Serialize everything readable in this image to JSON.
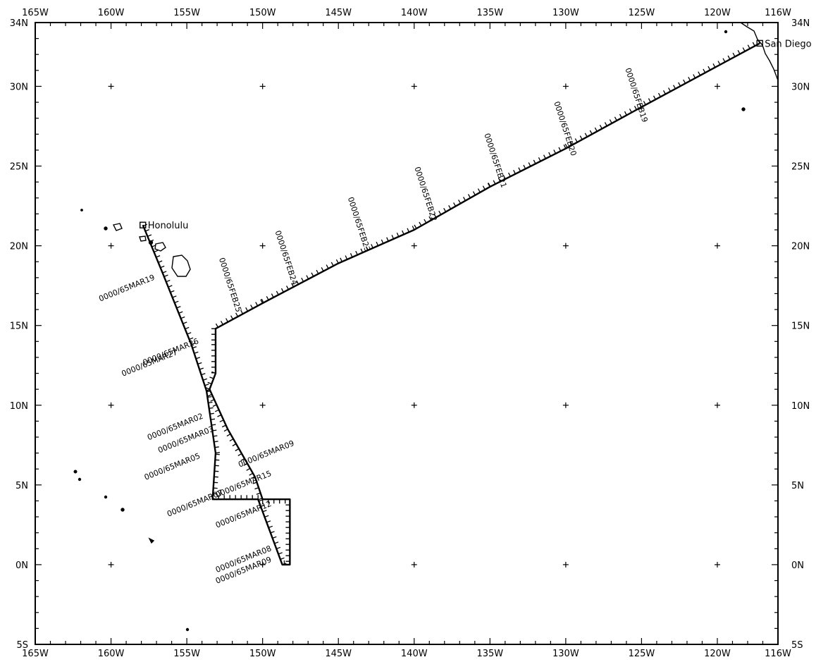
{
  "map": {
    "lon_range": [
      -165,
      -116
    ],
    "lat_range": [
      -5,
      34
    ],
    "lon_ticks": [
      {
        "value": -165,
        "label": "165W"
      },
      {
        "value": -160,
        "label": "160W"
      },
      {
        "value": -155,
        "label": "155W"
      },
      {
        "value": -150,
        "label": "150W"
      },
      {
        "value": -145,
        "label": "145W"
      },
      {
        "value": -140,
        "label": "140W"
      },
      {
        "value": -135,
        "label": "135W"
      },
      {
        "value": -130,
        "label": "130W"
      },
      {
        "value": -125,
        "label": "125W"
      },
      {
        "value": -120,
        "label": "120W"
      },
      {
        "value": -116,
        "label": "116W"
      }
    ],
    "lat_ticks": [
      {
        "value": 34,
        "label": "34N"
      },
      {
        "value": 30,
        "label": "30N"
      },
      {
        "value": 25,
        "label": "25N"
      },
      {
        "value": 20,
        "label": "20N"
      },
      {
        "value": 15,
        "label": "15N"
      },
      {
        "value": 10,
        "label": "10N"
      },
      {
        "value": 5,
        "label": "5N"
      },
      {
        "value": 0,
        "label": "0N"
      },
      {
        "value": -5,
        "label": "5S"
      }
    ],
    "grid_crosses": true,
    "line_color": "#000000",
    "places": [
      {
        "name": "San Diego",
        "lon": -117.2,
        "lat": 32.7
      },
      {
        "name": "Honolulu",
        "lon": -157.9,
        "lat": 21.3
      }
    ],
    "track": [
      [
        -117.2,
        32.7
      ],
      [
        -125,
        28.7
      ],
      [
        -130,
        26.1
      ],
      [
        -135,
        23.7
      ],
      [
        -140,
        21.0
      ],
      [
        -145,
        18.9
      ],
      [
        -150,
        16.4
      ],
      [
        -153.1,
        14.8
      ],
      [
        -153.1,
        13.8
      ],
      [
        -153.1,
        12.0
      ],
      [
        -153.5,
        11.0
      ],
      [
        -152.3,
        8.5
      ],
      [
        -150.5,
        5.5
      ],
      [
        -150,
        4.1
      ],
      [
        -148.2,
        4.1
      ],
      [
        -148.2,
        0
      ],
      [
        -148.7,
        0
      ],
      [
        -150.3,
        4.1
      ],
      [
        -153.3,
        4.1
      ],
      [
        -153.1,
        7.0
      ],
      [
        -153.7,
        10.9
      ],
      [
        -154.7,
        13.8
      ],
      [
        -156.6,
        18.3
      ],
      [
        -157.9,
        21.3
      ]
    ],
    "date_labels": [
      {
        "text": "0000/65FEB19",
        "lon": -125.5,
        "lat": 29.4
      },
      {
        "text": "0000/65FEB20",
        "lon": -130.2,
        "lat": 27.3
      },
      {
        "text": "0000/65FEB21",
        "lon": -134.8,
        "lat": 25.3
      },
      {
        "text": "0000/65FEB22",
        "lon": -139.4,
        "lat": 23.2
      },
      {
        "text": "0000/65FEB23",
        "lon": -143.8,
        "lat": 21.3
      },
      {
        "text": "0000/65FEB24",
        "lon": -148.6,
        "lat": 19.2
      },
      {
        "text": "0000/65FEB25",
        "lon": -152.3,
        "lat": 17.5
      },
      {
        "text": "0000/65MAR19",
        "lon": -158.9,
        "lat": 17.2
      },
      {
        "text": "0000/65MAR26",
        "lon": -156.0,
        "lat": 13.2
      },
      {
        "text": "0000/65MAR27",
        "lon": -157.4,
        "lat": 12.5
      },
      {
        "text": "0000/65MAR02",
        "lon": -155.7,
        "lat": 8.5
      },
      {
        "text": "0000/65MAR03",
        "lon": -155.0,
        "lat": 7.7
      },
      {
        "text": "0000/65MAR05",
        "lon": -155.9,
        "lat": 6.0
      },
      {
        "text": "0000/65MAR09",
        "lon": -149.7,
        "lat": 6.8
      },
      {
        "text": "0000/65MAR15",
        "lon": -151.2,
        "lat": 4.9
      },
      {
        "text": "0000/65MAR07",
        "lon": -154.4,
        "lat": 3.7
      },
      {
        "text": "0000/65MAR12",
        "lon": -151.2,
        "lat": 3.0
      },
      {
        "text": "0000/65MAR08",
        "lon": -151.2,
        "lat": 0.2
      },
      {
        "text": "0000/65MAR09",
        "lon": -151.2,
        "lat": -0.5
      }
    ]
  }
}
